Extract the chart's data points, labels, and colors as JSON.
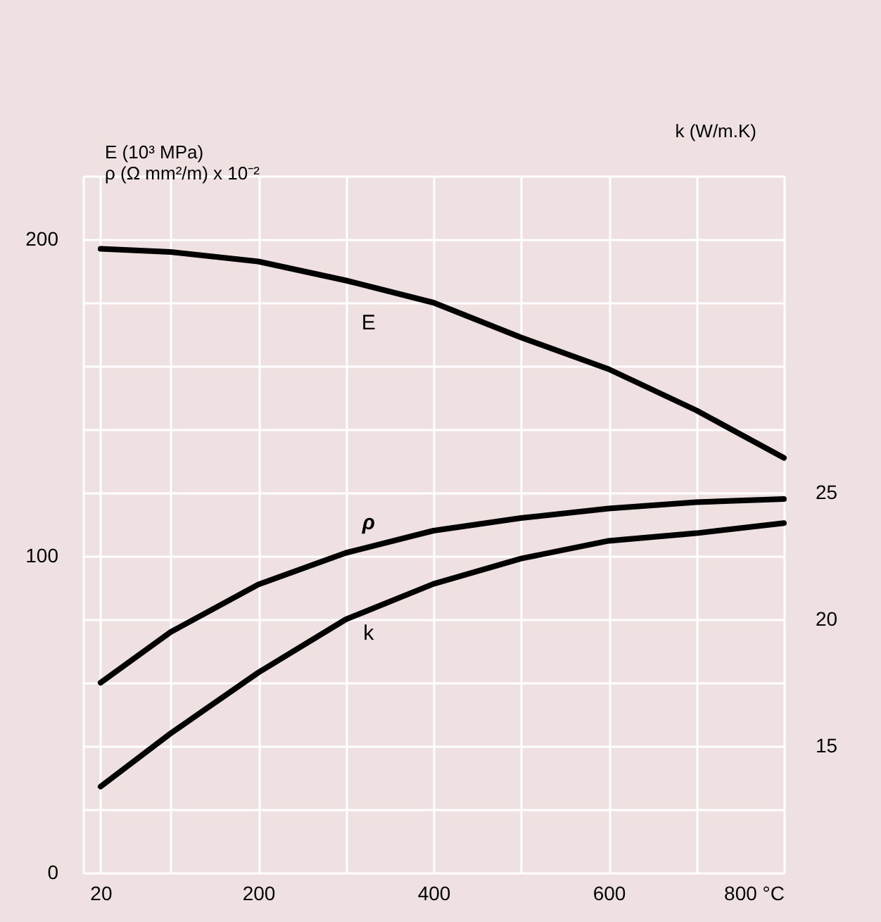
{
  "chart_data": {
    "type": "line",
    "ylabel": "E (10³ MPa)\nρ (Ω mm²/m) x 10⁻²",
    "y2label": "k (W/m.K)",
    "x": [
      20,
      100,
      200,
      300,
      400,
      500,
      600,
      700,
      800
    ],
    "series": [
      {
        "name": "E",
        "color": "#000000",
        "values": [
          197,
          196,
          193,
          187,
          180,
          169,
          159,
          146,
          131
        ]
      },
      {
        "name": "ρ",
        "color": "#000000",
        "values": [
          60,
          76,
          91,
          101,
          108,
          112,
          115,
          117,
          118
        ]
      },
      {
        "name": "k",
        "color": "#000000",
        "axis": "y2",
        "values": [
          13.4,
          15.5,
          17.9,
          20,
          21.4,
          22.4,
          23.1,
          23.4,
          23.8
        ]
      }
    ],
    "xlim": [
      0,
      800
    ],
    "xticks": [
      {
        "value": 0,
        "label": null
      },
      {
        "value": 20,
        "label": "20"
      },
      {
        "value": 100,
        "label": null
      },
      200,
      {
        "value": 300,
        "label": null
      },
      400,
      {
        "value": 500,
        "label": null
      },
      600,
      {
        "value": 700,
        "label": null
      },
      {
        "value": 800,
        "label": "800 °C"
      }
    ],
    "ylim": [
      0,
      220
    ],
    "yticks": [
      0,
      {
        "value": 20,
        "label": null
      },
      {
        "value": 40,
        "label": null
      },
      {
        "value": 60,
        "label": null
      },
      {
        "value": 80,
        "label": null
      },
      100,
      {
        "value": 120,
        "label": null
      },
      {
        "value": 140,
        "label": null
      },
      {
        "value": 160,
        "label": null
      },
      {
        "value": 180,
        "label": null
      },
      200,
      {
        "value": 220,
        "label": null
      }
    ],
    "y2lim": [
      10,
      37.5
    ],
    "y2ticks": [
      15,
      20,
      25
    ],
    "grid": true,
    "legend": false,
    "marker": "none",
    "line_style": "solid"
  }
}
